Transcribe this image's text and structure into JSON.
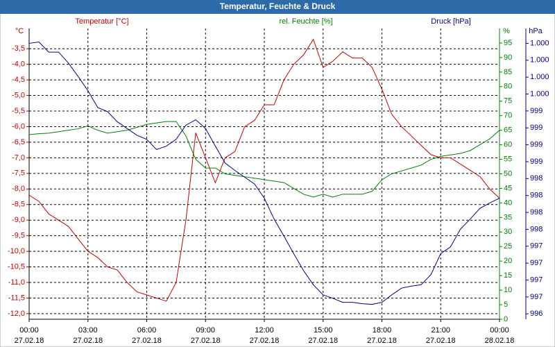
{
  "chart_data": {
    "type": "line",
    "title": "Temperatur, Feuchte & Druck",
    "axis_units": {
      "y": "°C",
      "y2": "%",
      "y3": "hPa"
    },
    "x": [
      0,
      0.5,
      1,
      1.5,
      2,
      2.5,
      3,
      3.5,
      4,
      4.5,
      5,
      5.5,
      6,
      6.5,
      7,
      7.5,
      8,
      8.5,
      9,
      9.5,
      10,
      10.5,
      11,
      11.5,
      12,
      12.5,
      13,
      13.5,
      14,
      14.5,
      15,
      15.5,
      16,
      16.5,
      17,
      17.5,
      18,
      18.5,
      19,
      19.5,
      20,
      20.5,
      21,
      21.5,
      22,
      22.5,
      23,
      23.5,
      24
    ],
    "xlim": [
      0,
      24
    ],
    "xticks": [
      {
        "value": 0,
        "label": "00:00\n27.02.18"
      },
      {
        "value": 3,
        "label": "03:00\n27.02.18"
      },
      {
        "value": 6,
        "label": "06:00\n27.02.18"
      },
      {
        "value": 9,
        "label": "09:00\n27.02.18"
      },
      {
        "value": 12,
        "label": "12:00\n27.02.18"
      },
      {
        "value": 15,
        "label": "15:00\n27.02.18"
      },
      {
        "value": 18,
        "label": "18:00\n27.02.18"
      },
      {
        "value": 21,
        "label": "21:00\n27.02.18"
      },
      {
        "value": 24,
        "label": "00:00\n28.02.18"
      }
    ],
    "ylim": [
      -12.18,
      -2.85
    ],
    "yticks": [
      {
        "value": -3.5,
        "label": "-3,5"
      },
      {
        "value": -4,
        "label": "-4,0"
      },
      {
        "value": -4.5,
        "label": "-4,5"
      },
      {
        "value": -5,
        "label": "-5,0"
      },
      {
        "value": -5.5,
        "label": "-5,5"
      },
      {
        "value": -6,
        "label": "-6,0"
      },
      {
        "value": -6.5,
        "label": "-6,5"
      },
      {
        "value": -7,
        "label": "-7,0"
      },
      {
        "value": -7.5,
        "label": "-7,5"
      },
      {
        "value": -8,
        "label": "-8,0"
      },
      {
        "value": -8.5,
        "label": "-8,5"
      },
      {
        "value": -9,
        "label": "-9,0"
      },
      {
        "value": -9.5,
        "label": "-9,5"
      },
      {
        "value": -10,
        "label": "-10,0"
      },
      {
        "value": -10.5,
        "label": "-10,5"
      },
      {
        "value": -11,
        "label": "-11,0"
      },
      {
        "value": -11.5,
        "label": "-11,5"
      },
      {
        "value": -12,
        "label": "-12,0"
      }
    ],
    "y2lim": [
      0,
      100
    ],
    "y2ticks": [
      0,
      5,
      10,
      15,
      20,
      25,
      30,
      35,
      40,
      45,
      50,
      55,
      60,
      65,
      70,
      75,
      80,
      85,
      90,
      95
    ],
    "y3lim": [
      996.17,
      1000.47
    ],
    "y3ticks": [
      {
        "value": 1000.25,
        "label": "1.000"
      },
      {
        "value": 1000,
        "label": "1.000"
      },
      {
        "value": 999.75,
        "label": "1.000"
      },
      {
        "value": 999.5,
        "label": "1.000"
      },
      {
        "value": 999.25,
        "label": "999"
      },
      {
        "value": 999,
        "label": "999"
      },
      {
        "value": 998.75,
        "label": "999"
      },
      {
        "value": 998.5,
        "label": "999"
      },
      {
        "value": 998.25,
        "label": "998"
      },
      {
        "value": 998,
        "label": "998"
      },
      {
        "value": 997.75,
        "label": "998"
      },
      {
        "value": 997.5,
        "label": "998"
      },
      {
        "value": 997.25,
        "label": "997"
      },
      {
        "value": 997,
        "label": "997"
      },
      {
        "value": 996.75,
        "label": "997"
      },
      {
        "value": 996.5,
        "label": "997"
      },
      {
        "value": 996.25,
        "label": "996"
      }
    ],
    "grid": true,
    "series": [
      {
        "name": "Temperatur [°C]",
        "color": "#c00000",
        "axis": "y",
        "values": [
          -8.2,
          -8.4,
          -8.8,
          -9.0,
          -9.2,
          -9.6,
          -10.0,
          -10.2,
          -10.5,
          -10.6,
          -11.0,
          -11.3,
          -11.4,
          -11.5,
          -11.6,
          -11.0,
          -9.0,
          -6.2,
          -7.0,
          -7.8,
          -7.0,
          -6.8,
          -6.0,
          -5.8,
          -5.3,
          -5.3,
          -4.5,
          -4.0,
          -3.7,
          -3.2,
          -4.1,
          -3.9,
          -3.6,
          -3.8,
          -3.8,
          -4.1,
          -4.8,
          -5.6,
          -6.0,
          -6.3,
          -6.6,
          -6.9,
          -7.0,
          -7.0,
          -7.2,
          -7.4,
          -7.6,
          -8.0,
          -8.3
        ]
      },
      {
        "name": "rel. Feuchte [%]",
        "color": "#008000",
        "axis": "y2",
        "values": [
          63.5,
          63.8,
          64,
          64.5,
          65,
          65.5,
          66.5,
          65,
          64,
          64.5,
          65,
          66,
          67,
          67.5,
          68,
          68,
          63,
          55,
          52,
          52,
          50,
          49.5,
          49,
          48.5,
          48,
          47.5,
          47,
          45,
          43,
          42,
          43,
          42,
          43,
          43,
          43,
          44,
          48,
          50,
          51,
          52,
          53,
          55,
          56,
          56.5,
          57,
          58,
          60,
          62,
          65
        ]
      },
      {
        "name": "Druck [hPa]",
        "color": "#000080",
        "axis": "y3",
        "values": [
          1000.25,
          1000.27,
          1000.12,
          1000.12,
          999.96,
          999.76,
          999.55,
          999.3,
          999.24,
          999.09,
          998.99,
          998.89,
          998.83,
          998.68,
          998.73,
          998.83,
          999.04,
          999.12,
          998.99,
          998.73,
          998.48,
          998.37,
          998.27,
          998.17,
          997.96,
          997.65,
          997.4,
          997.14,
          996.89,
          996.68,
          996.53,
          996.48,
          996.42,
          996.42,
          996.4,
          996.39,
          996.42,
          996.53,
          996.63,
          996.66,
          996.68,
          996.83,
          997.14,
          997.24,
          997.5,
          997.65,
          997.81,
          997.89,
          997.96
        ]
      }
    ]
  }
}
